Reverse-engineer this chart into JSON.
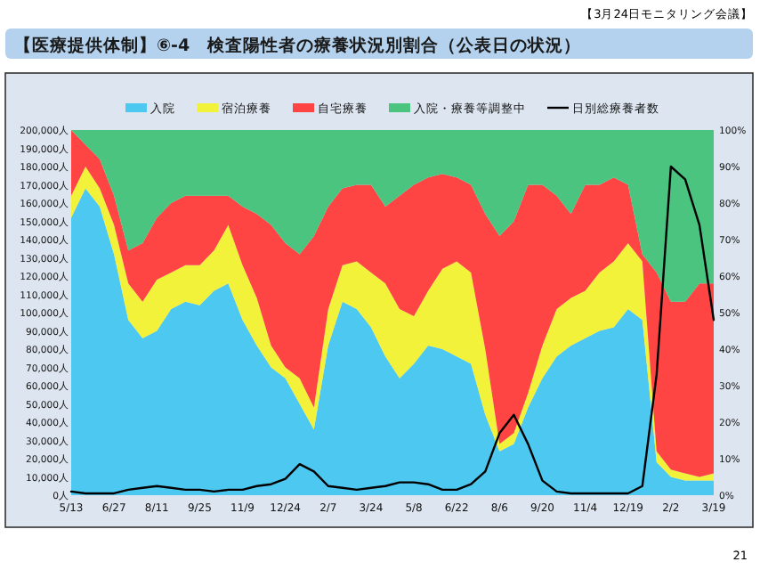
{
  "chart_data": {
    "type": "area",
    "stacked": true,
    "title": "【医療提供体制】⑥-4　検査陽性者の療養状況別割合（公表日の状況）",
    "annotations": [
      "【3月24日モニタリング会議】",
      "21"
    ],
    "categories": [
      "5/13",
      null,
      null,
      "6/27",
      null,
      null,
      "8/11",
      null,
      null,
      "9/25",
      null,
      null,
      "11/9",
      null,
      null,
      "12/24",
      null,
      null,
      "2/7",
      null,
      null,
      "3/24",
      null,
      null,
      "5/8",
      null,
      null,
      "6/22",
      null,
      null,
      "8/6",
      null,
      null,
      "9/20",
      null,
      null,
      "11/4",
      null,
      null,
      "12/19",
      null,
      null,
      "2/2",
      null,
      null,
      "3/19"
    ],
    "series": [
      {
        "name": "入院",
        "color": "#4dc8f0",
        "axis": "y2",
        "values": [
          76,
          84,
          79,
          66,
          48,
          43,
          45,
          51,
          53,
          52,
          56,
          58,
          48,
          41,
          35,
          32,
          25,
          18,
          41,
          53,
          51,
          46,
          38,
          32,
          36,
          41,
          40,
          38,
          36,
          22,
          12,
          14,
          24,
          32,
          38,
          41,
          43,
          45,
          46,
          51,
          48,
          9,
          5,
          4,
          4,
          4
        ]
      },
      {
        "name": "宿泊療養",
        "color": "#f2f23a",
        "axis": "y2",
        "values": [
          6,
          6,
          5,
          8,
          10,
          10,
          14,
          10,
          10,
          11,
          11,
          16,
          15,
          13,
          6,
          3,
          7,
          6,
          10,
          10,
          13,
          15,
          20,
          19,
          13,
          15,
          22,
          26,
          25,
          18,
          2,
          3,
          4,
          9,
          13,
          13,
          13,
          16,
          18,
          18,
          16,
          3,
          2,
          2,
          1,
          2
        ]
      },
      {
        "name": "自宅療養",
        "color": "#ff4444",
        "axis": "y2",
        "values": [
          18,
          6,
          8,
          8,
          9,
          16,
          17,
          19,
          19,
          19,
          15,
          8,
          16,
          23,
          33,
          34,
          34,
          47,
          28,
          21,
          21,
          24,
          21,
          31,
          36,
          31,
          26,
          23,
          24,
          37,
          57,
          58,
          57,
          44,
          31,
          23,
          29,
          24,
          23,
          16,
          2,
          49,
          46,
          47,
          53,
          52
        ]
      },
      {
        "name": "入院・療養等調整中",
        "color": "#4ac47f",
        "axis": "y2",
        "values": [
          0,
          4,
          8,
          18,
          33,
          31,
          24,
          20,
          18,
          18,
          18,
          18,
          21,
          23,
          26,
          31,
          34,
          29,
          21,
          16,
          15,
          15,
          21,
          18,
          15,
          13,
          12,
          13,
          15,
          23,
          29,
          25,
          15,
          15,
          18,
          23,
          15,
          15,
          13,
          15,
          34,
          39,
          47,
          47,
          42,
          42
        ]
      },
      {
        "name": "日別総療養者数",
        "type": "line",
        "color": "#000000",
        "axis": "y",
        "values": [
          2000,
          1000,
          1000,
          1000,
          3000,
          4000,
          5000,
          4000,
          3000,
          3000,
          2000,
          3000,
          3000,
          5000,
          6000,
          9000,
          17000,
          13000,
          5000,
          4000,
          3000,
          4000,
          5000,
          7000,
          7000,
          6000,
          3000,
          3000,
          6000,
          13000,
          34000,
          44000,
          28000,
          8000,
          2000,
          1000,
          1000,
          1000,
          1000,
          1000,
          5000,
          66000,
          180000,
          173000,
          148000,
          96000
        ]
      }
    ],
    "ylim": [
      0,
      200000
    ],
    "yticks": [
      {
        "value": 0,
        "label": "0人"
      },
      {
        "value": 10000,
        "label": "10,000人"
      },
      {
        "value": 20000,
        "label": "20,000人"
      },
      {
        "value": 30000,
        "label": "30,000人"
      },
      {
        "value": 40000,
        "label": "40,000人"
      },
      {
        "value": 50000,
        "label": "50,000人"
      },
      {
        "value": 60000,
        "label": "60,000人"
      },
      {
        "value": 70000,
        "label": "70,000人"
      },
      {
        "value": 80000,
        "label": "80,000人"
      },
      {
        "value": 90000,
        "label": "90,000人"
      },
      {
        "value": 100000,
        "label": "100,000人"
      },
      {
        "value": 110000,
        "label": "110,000人"
      },
      {
        "value": 120000,
        "label": "120,000人"
      },
      {
        "value": 130000,
        "label": "130,000人"
      },
      {
        "value": 140000,
        "label": "140,000人"
      },
      {
        "value": 150000,
        "label": "150,000人"
      },
      {
        "value": 160000,
        "label": "160,000人"
      },
      {
        "value": 170000,
        "label": "170,000人"
      },
      {
        "value": 180000,
        "label": "180,000人"
      },
      {
        "value": 190000,
        "label": "190,000人"
      },
      {
        "value": 200000,
        "label": "200,000人"
      }
    ],
    "y2lim": [
      0,
      100
    ],
    "y2ticks": [
      {
        "value": 0,
        "label": "0%"
      },
      {
        "value": 10,
        "label": "10%"
      },
      {
        "value": 20,
        "label": "20%"
      },
      {
        "value": 30,
        "label": "30%"
      },
      {
        "value": 40,
        "label": "40%"
      },
      {
        "value": 50,
        "label": "50%"
      },
      {
        "value": 60,
        "label": "60%"
      },
      {
        "value": 70,
        "label": "70%"
      },
      {
        "value": 80,
        "label": "80%"
      },
      {
        "value": 90,
        "label": "90%"
      },
      {
        "value": 100,
        "label": "100%"
      }
    ],
    "legend": "top"
  }
}
